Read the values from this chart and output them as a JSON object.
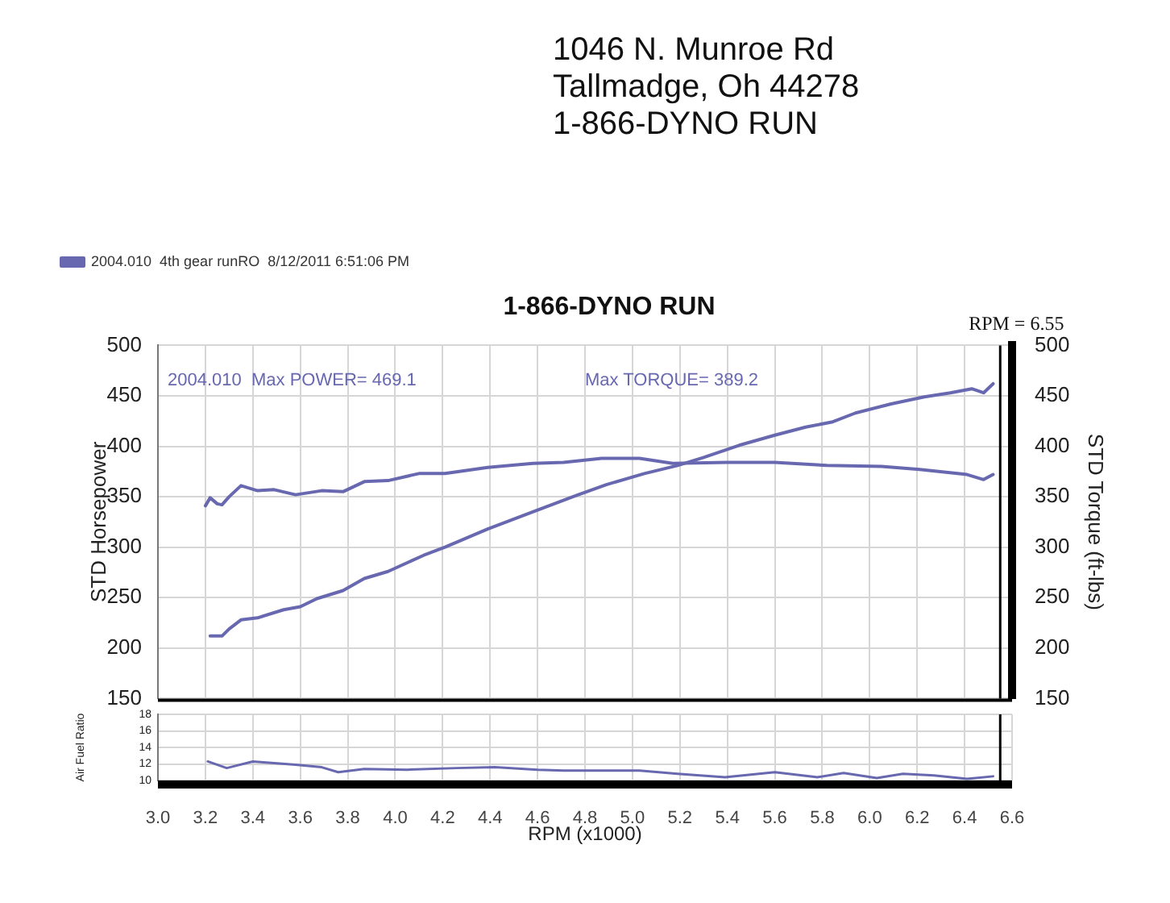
{
  "chart_data": [
    {
      "type": "line",
      "title": "1-866-DYNO RUN",
      "ylabel": "STD Horsepower",
      "y2label": "STD Torque (ft-lbs)",
      "annotations": [
        "2004.010  Max POWER= 469.1",
        "Max TORQUE= 389.2",
        "1046 N. Munroe Rd",
        "Tallmadge, Oh 44278",
        "1-866-DYNO RUN"
      ],
      "xlim": [
        3.0,
        6.6
      ],
      "xticks": [
        3,
        3.2,
        3.4,
        3.6,
        3.8,
        4,
        4.2,
        4.4,
        4.6,
        4.8,
        5,
        5.2,
        5.4,
        5.6,
        5.8,
        6,
        6.2,
        6.4,
        6.6
      ],
      "ylim": [
        150,
        500
      ],
      "yticks": [
        150,
        200,
        250,
        300,
        350,
        400,
        450,
        500
      ],
      "y2lim": [
        150,
        500
      ],
      "y2ticks": [
        150,
        200,
        250,
        300,
        350,
        400,
        450,
        500
      ],
      "series": [
        {
          "name": "2004.010  4th gear runRO  8/12/2011 6:51:06 PM",
          "color": "#6868b0",
          "x": [
            3.22,
            3.27,
            3.3,
            3.35,
            3.42,
            3.53,
            3.6,
            3.67,
            3.78,
            3.87,
            3.97,
            4.12,
            4.21,
            4.39,
            4.58,
            4.76,
            4.89,
            5.05,
            5.19,
            5.3,
            5.45,
            5.6,
            5.73,
            5.84,
            5.94,
            6.09,
            6.23,
            6.34,
            6.43,
            6.48,
            6.52
          ],
          "values": [
            212,
            212,
            219,
            228,
            230,
            238,
            241,
            249,
            257,
            269,
            276,
            292,
            300,
            318,
            335,
            351,
            362,
            373,
            381,
            389,
            401,
            411,
            419,
            424,
            433,
            442,
            449,
            453,
            457,
            453,
            462
          ]
        },
        {
          "color": "#6868b0",
          "axis": "y2",
          "x": [
            3.2,
            3.22,
            3.25,
            3.27,
            3.3,
            3.35,
            3.42,
            3.49,
            3.58,
            3.69,
            3.78,
            3.87,
            3.97,
            4.1,
            4.21,
            4.39,
            4.58,
            4.71,
            4.87,
            5.03,
            5.17,
            5.4,
            5.6,
            5.82,
            6.05,
            6.21,
            6.41,
            6.48,
            6.52
          ],
          "values": [
            341,
            349,
            343,
            342,
            350,
            361,
            356,
            357,
            352,
            356,
            355,
            365,
            366,
            373,
            373,
            379,
            383,
            384,
            388,
            388,
            383,
            384,
            384,
            381,
            380,
            377,
            372,
            367,
            372
          ]
        }
      ],
      "ref_lines": [
        {
          "axis": "x",
          "value": 6.55,
          "label": "RPM = 6.55",
          "color": "#000000"
        }
      ],
      "grid": true,
      "legend": "top left",
      "tick_labels": "y"
    },
    {
      "type": "line",
      "ylabel": "Air Fuel Ratio",
      "xlabel": "RPM (x1000)",
      "xlim": [
        3.0,
        6.6
      ],
      "xticks": [
        {
          "value": 3,
          "label": "3.0"
        },
        3.2,
        3.4,
        3.6,
        3.8,
        {
          "value": 4,
          "label": "4.0"
        },
        4.2,
        4.4,
        4.6,
        4.8,
        {
          "value": 5,
          "label": "5.0"
        },
        5.2,
        5.4,
        5.6,
        5.8,
        {
          "value": 6,
          "label": "6.0"
        },
        6.2,
        6.4,
        6.6
      ],
      "ylim": [
        10,
        18
      ],
      "yticks": [
        10,
        12,
        14,
        16,
        18
      ],
      "series": [
        {
          "color": "#6868b0",
          "x": [
            3.21,
            3.29,
            3.4,
            3.58,
            3.69,
            3.76,
            3.87,
            4.05,
            4.26,
            4.42,
            4.6,
            4.71,
            5.03,
            5.19,
            5.39,
            5.6,
            5.78,
            5.89,
            6.03,
            6.14,
            6.27,
            6.41,
            6.52
          ],
          "values": [
            12.3,
            11.5,
            12.3,
            11.9,
            11.6,
            11.0,
            11.4,
            11.3,
            11.5,
            11.6,
            11.3,
            11.2,
            11.2,
            10.8,
            10.4,
            11.0,
            10.4,
            10.9,
            10.3,
            10.8,
            10.6,
            10.2,
            10.5
          ]
        }
      ],
      "ref_lines": [
        {
          "axis": "x",
          "value": 6.55,
          "color": "#000000"
        }
      ],
      "grid": true
    }
  ]
}
